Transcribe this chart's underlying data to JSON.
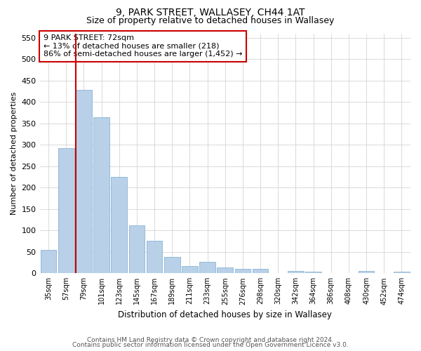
{
  "title": "9, PARK STREET, WALLASEY, CH44 1AT",
  "subtitle": "Size of property relative to detached houses in Wallasey",
  "xlabel": "Distribution of detached houses by size in Wallasey",
  "ylabel": "Number of detached properties",
  "annotation_line1": "9 PARK STREET: 72sqm",
  "annotation_line2": "← 13% of detached houses are smaller (218)",
  "annotation_line3": "86% of semi-detached houses are larger (1,452) →",
  "marker_index": 2,
  "categories": [
    "35sqm",
    "57sqm",
    "79sqm",
    "101sqm",
    "123sqm",
    "145sqm",
    "167sqm",
    "189sqm",
    "211sqm",
    "233sqm",
    "255sqm",
    "276sqm",
    "298sqm",
    "320sqm",
    "342sqm",
    "364sqm",
    "386sqm",
    "408sqm",
    "430sqm",
    "452sqm",
    "474sqm"
  ],
  "values": [
    55,
    292,
    428,
    365,
    225,
    112,
    76,
    38,
    17,
    27,
    14,
    10,
    10,
    0,
    6,
    3,
    0,
    0,
    6,
    0,
    4
  ],
  "bar_color": "#b8d0e8",
  "bar_edge_color": "#8ab4d4",
  "marker_color": "#cc0000",
  "annotation_box_color": "#cc0000",
  "ylim": [
    0,
    560
  ],
  "yticks": [
    0,
    50,
    100,
    150,
    200,
    250,
    300,
    350,
    400,
    450,
    500,
    550
  ],
  "footer_line1": "Contains HM Land Registry data © Crown copyright and database right 2024.",
  "footer_line2": "Contains public sector information licensed under the Open Government Licence v3.0.",
  "background_color": "#ffffff",
  "grid_color": "#cccccc"
}
